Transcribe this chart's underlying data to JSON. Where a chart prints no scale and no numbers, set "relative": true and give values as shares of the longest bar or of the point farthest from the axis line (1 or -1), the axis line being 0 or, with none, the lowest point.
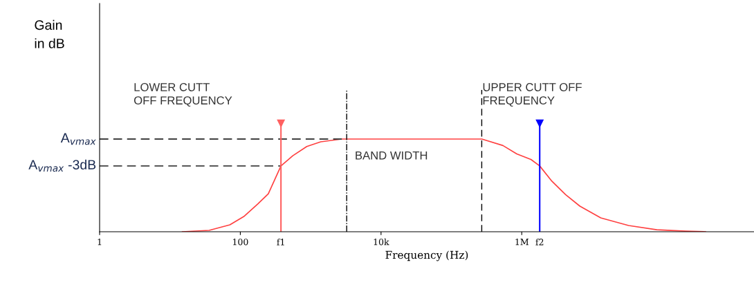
{
  "chart_data": {
    "type": "line",
    "relative": true,
    "log": "x",
    "xlabel": "Frequency (Hz)",
    "x": [
      15,
      36,
      71,
      112,
      177,
      250,
      378,
      557,
      881,
      1390,
      2770,
      271000,
      540000,
      850000,
      1350000,
      1800000,
      2680000,
      4200000,
      6700000,
      13300000,
      33000000,
      83000000,
      210000000,
      410000000
    ],
    "series": [
      {
        "color": "#ff4040",
        "values": [
          0,
          0.015,
          0.075,
          0.164,
          0.299,
          0.41,
          0.71,
          0.82,
          0.92,
          0.97,
          1.0,
          1.0,
          0.93,
          0.84,
          0.78,
          0.71,
          0.545,
          0.4,
          0.276,
          0.149,
          0.067,
          0.022,
          0.007,
          0
        ]
      }
    ],
    "xlim": [
      1,
      2000000000
    ],
    "xticks": [
      1,
      100,
      {
        "value": 10000,
        "label": "10k"
      },
      {
        "value": 1000000,
        "label": "1M"
      }
    ],
    "ref_lines": [
      {
        "axis": "y",
        "value": 1.0,
        "label": "A$_{vmax}$",
        "color": "#404040",
        "line_style": "dashed"
      },
      {
        "axis": "y",
        "value": 0.71,
        "label": "A$_{vmax}$ -3dB",
        "color": "#404040",
        "line_style": "dashed"
      },
      {
        "axis": "x",
        "value": 378,
        "label": "f1",
        "color": "#ff6060",
        "line_style": "solid"
      },
      {
        "axis": "x",
        "value": 1800000,
        "label": "f2",
        "color": "#0000ff",
        "line_style": "solid"
      },
      {
        "axis": "x",
        "value": 3250,
        "color": "#000000",
        "line_style": "dashdot"
      },
      {
        "axis": "x",
        "value": 270000,
        "color": "#000000",
        "line_style": "dashed"
      }
    ],
    "annotations": [
      "Gain\nin dB",
      "LOWER CUTT\nOFF FREQUENCY",
      "UPPER CUTT OFF\nFREQUENCY",
      "BAND WIDTH"
    ],
    "grid": false,
    "legend": false,
    "marker": "none",
    "line_style": "solid"
  }
}
